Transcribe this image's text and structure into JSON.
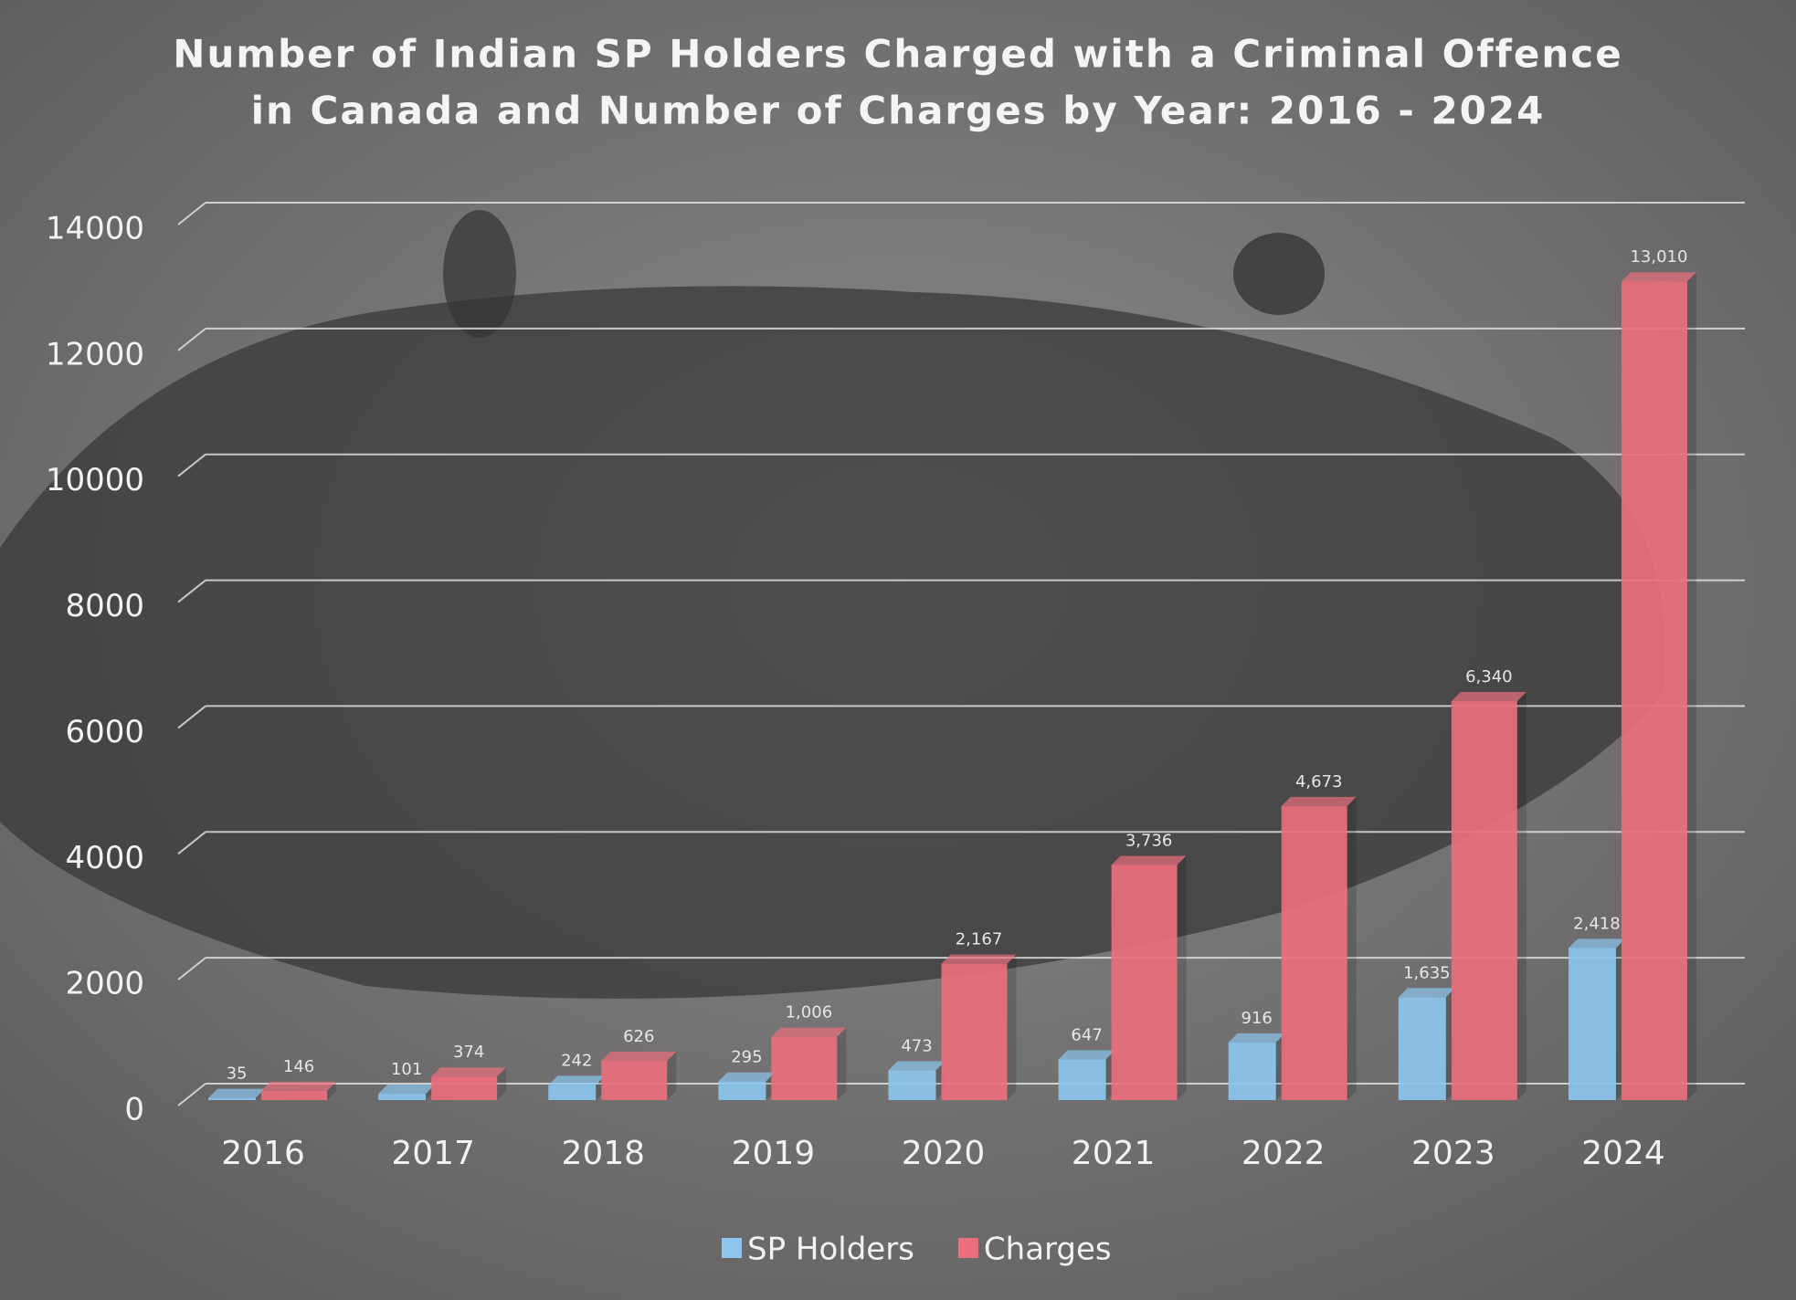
{
  "chart_data": {
    "type": "bar",
    "title": [
      "Number of Indian SP Holders Charged with a Criminal Offence",
      "in Canada and Number of Charges by Year: 2016 - 2024"
    ],
    "categories": [
      "2016",
      "2017",
      "2018",
      "2019",
      "2020",
      "2021",
      "2022",
      "2023",
      "2024"
    ],
    "series": [
      {
        "name": "SP Holders",
        "color": "#8cc6ee",
        "values": [
          35,
          101,
          242,
          295,
          473,
          647,
          916,
          1635,
          2418
        ],
        "value_labels": [
          "35",
          "101",
          "242",
          "295",
          "473",
          "647",
          "916",
          "1,635",
          "2,418"
        ]
      },
      {
        "name": "Charges",
        "color": "#ea6f7c",
        "values": [
          146,
          374,
          626,
          1006,
          2167,
          3736,
          4673,
          6340,
          13010
        ],
        "value_labels": [
          "146",
          "374",
          "626",
          "1,006",
          "2,167",
          "3,736",
          "4,673",
          "6,340",
          "13,010"
        ]
      }
    ],
    "ylim": [
      0,
      14000
    ],
    "yticks": [
      0,
      2000,
      4000,
      6000,
      8000,
      10000,
      12000,
      14000
    ],
    "grid": true,
    "legend": "bottom"
  }
}
